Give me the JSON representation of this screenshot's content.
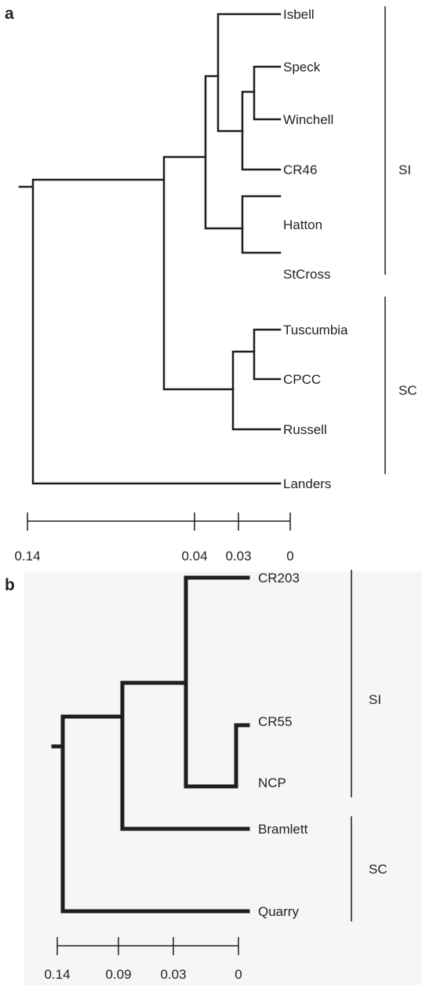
{
  "colors": {
    "line": "#1e1e1e",
    "text": "#222222",
    "panel_b_background": "#f6f6f6"
  },
  "panels": [
    {
      "letter": "a",
      "leaves": [
        "Isbell",
        "Speck",
        "Winchell",
        "CR46",
        "Hatton",
        "StCross",
        "Tuscumbia",
        "CPCC",
        "Russell",
        "Landers"
      ],
      "groups": [
        {
          "label": "SI",
          "members": [
            "Isbell",
            "Speck",
            "Winchell",
            "CR46",
            "Hatton",
            "StCross"
          ]
        },
        {
          "label": "SC",
          "members": [
            "Tuscumbia",
            "CPCC",
            "Russell",
            "Landers"
          ]
        }
      ],
      "scale_ticks": [
        "0.14",
        "0.04",
        "0.03",
        "0"
      ]
    },
    {
      "letter": "b",
      "leaves": [
        "CR203",
        "CR55",
        "NCP",
        "Bramlett",
        "Quarry"
      ],
      "groups": [
        {
          "label": "SI",
          "members": [
            "CR203",
            "CR55",
            "NCP"
          ]
        },
        {
          "label": "SC",
          "members": [
            "Bramlett",
            "Quarry"
          ]
        }
      ],
      "scale_ticks": [
        "0.14",
        "0.09",
        "0.03",
        "0"
      ]
    }
  ]
}
